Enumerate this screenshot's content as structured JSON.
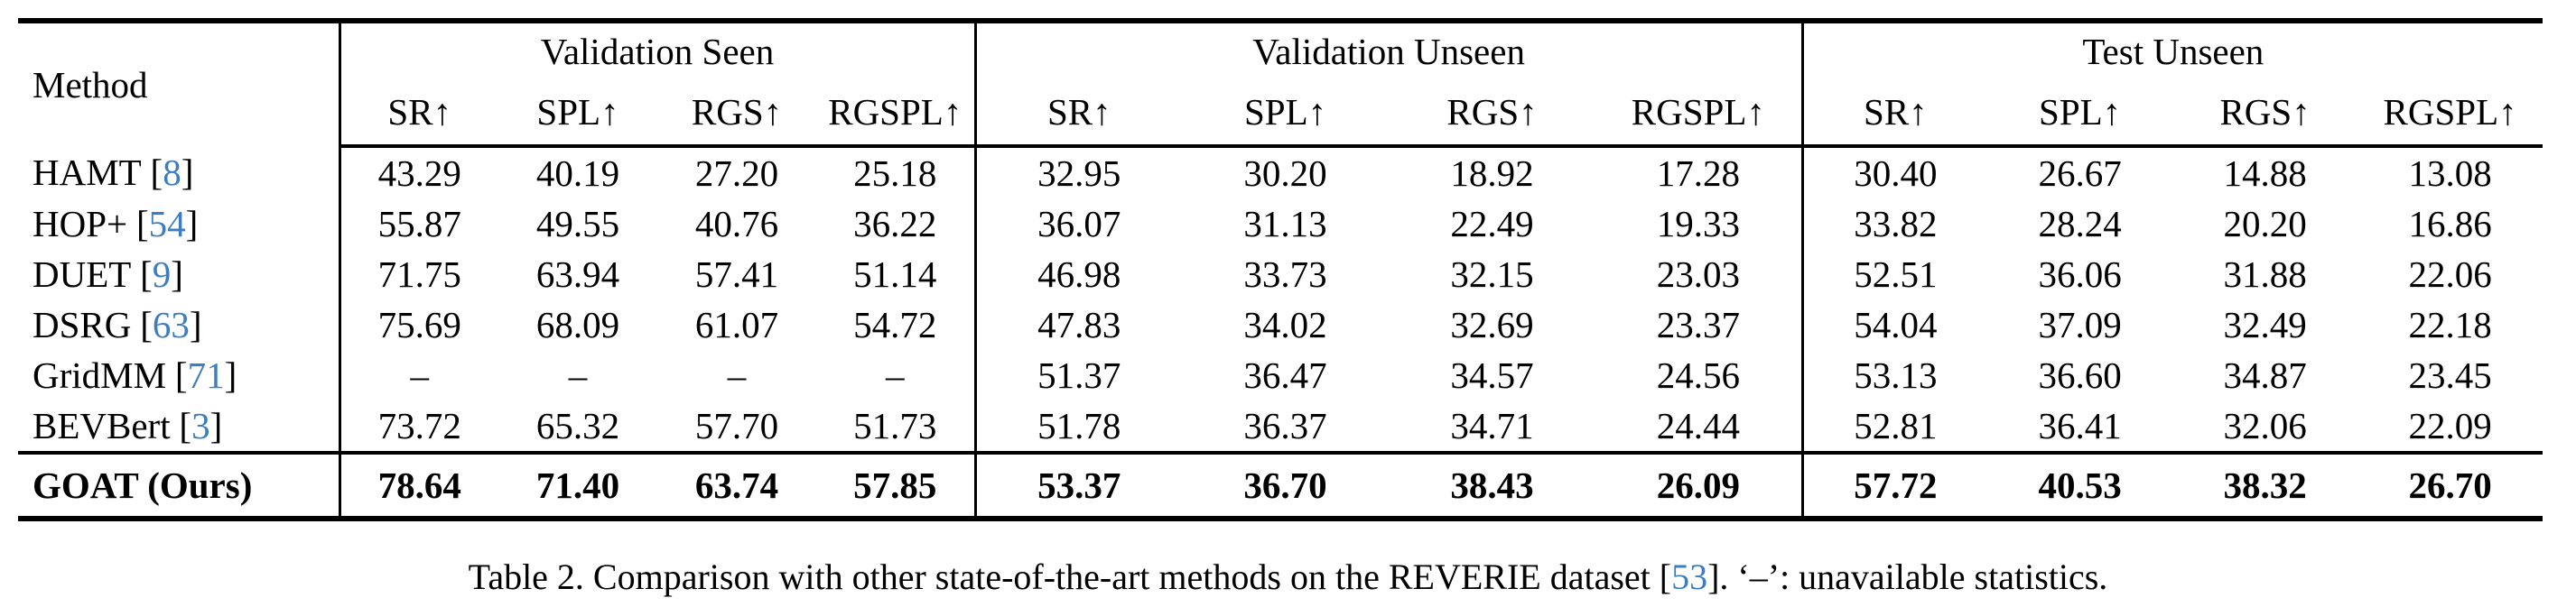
{
  "colors": {
    "text": "#000000",
    "citation_link": "#3e7dc1",
    "rule": "#000000",
    "background": "#ffffff"
  },
  "table": {
    "cite_open": "[",
    "cite_close": "]",
    "header": {
      "method_label": "Method",
      "groups": [
        "Validation Seen",
        "Validation Unseen",
        "Test Unseen"
      ],
      "metrics": [
        "SR↑",
        "SPL↑",
        "RGS↑",
        "RGSPL↑"
      ]
    },
    "rows": [
      {
        "method": "HAMT",
        "cite": "8",
        "values": [
          "43.29",
          "40.19",
          "27.20",
          "25.18",
          "32.95",
          "30.20",
          "18.92",
          "17.28",
          "30.40",
          "26.67",
          "14.88",
          "13.08"
        ]
      },
      {
        "method": "HOP+",
        "cite": "54",
        "values": [
          "55.87",
          "49.55",
          "40.76",
          "36.22",
          "36.07",
          "31.13",
          "22.49",
          "19.33",
          "33.82",
          "28.24",
          "20.20",
          "16.86"
        ]
      },
      {
        "method": "DUET",
        "cite": "9",
        "values": [
          "71.75",
          "63.94",
          "57.41",
          "51.14",
          "46.98",
          "33.73",
          "32.15",
          "23.03",
          "52.51",
          "36.06",
          "31.88",
          "22.06"
        ]
      },
      {
        "method": "DSRG",
        "cite": "63",
        "values": [
          "75.69",
          "68.09",
          "61.07",
          "54.72",
          "47.83",
          "34.02",
          "32.69",
          "23.37",
          "54.04",
          "37.09",
          "32.49",
          "22.18"
        ]
      },
      {
        "method": "GridMM",
        "cite": "71",
        "values": [
          "–",
          "–",
          "–",
          "–",
          "51.37",
          "36.47",
          "34.57",
          "24.56",
          "53.13",
          "36.60",
          "34.87",
          "23.45"
        ]
      },
      {
        "method": "BEVBert",
        "cite": "3",
        "values": [
          "73.72",
          "65.32",
          "57.70",
          "51.73",
          "51.78",
          "36.37",
          "34.71",
          "24.44",
          "52.81",
          "36.41",
          "32.06",
          "22.09"
        ]
      }
    ],
    "highlight_row": {
      "method": "GOAT (Ours)",
      "values": [
        "78.64",
        "71.40",
        "63.74",
        "57.85",
        "53.37",
        "36.70",
        "38.43",
        "26.09",
        "57.72",
        "40.53",
        "38.32",
        "26.70"
      ]
    }
  },
  "caption": {
    "text_before_cite": "Table 2. Comparison with other state-of-the-art methods on the REVERIE dataset ",
    "cite": "53",
    "text_after_cite": ". ‘–’: unavailable statistics."
  }
}
